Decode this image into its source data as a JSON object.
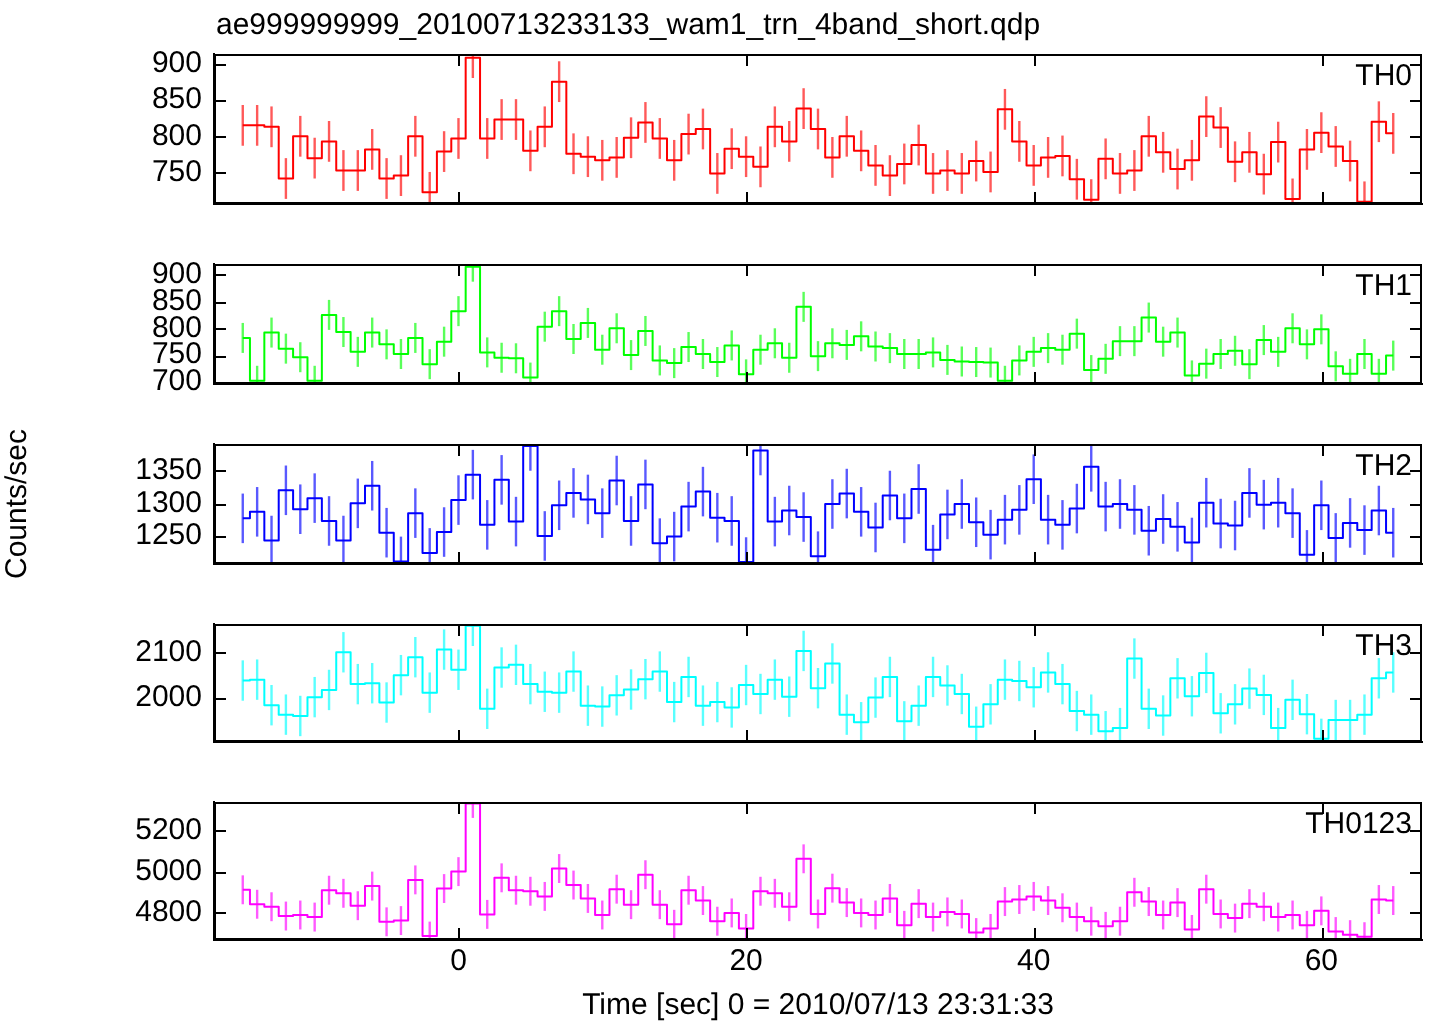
{
  "chart_data": [
    {
      "type": "step",
      "title": "ae999999999_20100713233133_wam1_trn_4band_short.qdp",
      "legend": "top right",
      "tick_labels": "y",
      "x": [
        -15,
        -14,
        -13,
        -12,
        -11,
        -10,
        -9,
        -8,
        -7,
        -6,
        -5,
        -4,
        -3,
        -2,
        -1,
        0,
        1,
        2,
        3,
        4,
        5,
        6,
        7,
        8,
        9,
        10,
        11,
        12,
        13,
        14,
        15,
        16,
        17,
        18,
        19,
        20,
        21,
        22,
        23,
        24,
        25,
        26,
        27,
        28,
        29,
        30,
        31,
        32,
        33,
        34,
        35,
        36,
        37,
        38,
        39,
        40,
        41,
        42,
        43,
        44,
        45,
        46,
        47,
        48,
        49,
        50,
        51,
        52,
        53,
        54,
        55,
        56,
        57,
        58,
        59,
        60,
        61,
        62,
        63,
        64,
        65
      ],
      "xlim": [
        -17,
        67
      ],
      "xticks": [
        0,
        20,
        40,
        60
      ],
      "ylim": [
        707,
        913
      ],
      "yticks": [
        750,
        800,
        850,
        900
      ],
      "series": [
        {
          "name": "TH0",
          "color": "#ff0000",
          "values": [
            815,
            815,
            813,
            742,
            800,
            770,
            793,
            753,
            753,
            782,
            742,
            746,
            800,
            723,
            779,
            797,
            908,
            797,
            823,
            823,
            780,
            813,
            875,
            776,
            772,
            767,
            771,
            798,
            819,
            797,
            767,
            803,
            810,
            749,
            783,
            772,
            758,
            813,
            793,
            838,
            810,
            771,
            800,
            780,
            760,
            746,
            762,
            788,
            749,
            753,
            749,
            766,
            751,
            837,
            793,
            760,
            771,
            773,
            741,
            713,
            769,
            749,
            753,
            800,
            778,
            755,
            767,
            827,
            812,
            765,
            778,
            748,
            792,
            714,
            782,
            805,
            786,
            766,
            710,
            820,
            804
          ],
          "errors": [
            28,
            28,
            28,
            28,
            28,
            28,
            28,
            28,
            28,
            28,
            28,
            28,
            28,
            28,
            28,
            28,
            28,
            28,
            28,
            28,
            28,
            28,
            28,
            28,
            28,
            28,
            28,
            28,
            28,
            28,
            28,
            28,
            28,
            28,
            28,
            28,
            28,
            28,
            28,
            28,
            28,
            28,
            28,
            28,
            28,
            28,
            28,
            28,
            28,
            28,
            28,
            28,
            28,
            28,
            28,
            28,
            28,
            28,
            28,
            28,
            28,
            28,
            28,
            28,
            28,
            28,
            28,
            28,
            28,
            28,
            28,
            28,
            28,
            28,
            28,
            28,
            28,
            28,
            28,
            28,
            28
          ]
        }
      ]
    },
    {
      "type": "step",
      "legend": "top right",
      "tick_labels": "y",
      "x": [
        -15,
        -14,
        -13,
        -12,
        -11,
        -10,
        -9,
        -8,
        -7,
        -6,
        -5,
        -4,
        -3,
        -2,
        -1,
        0,
        1,
        2,
        3,
        4,
        5,
        6,
        7,
        8,
        9,
        10,
        11,
        12,
        13,
        14,
        15,
        16,
        17,
        18,
        19,
        20,
        21,
        22,
        23,
        24,
        25,
        26,
        27,
        28,
        29,
        30,
        31,
        32,
        33,
        34,
        35,
        36,
        37,
        38,
        39,
        40,
        41,
        42,
        43,
        44,
        45,
        46,
        47,
        48,
        49,
        50,
        51,
        52,
        53,
        54,
        55,
        56,
        57,
        58,
        59,
        60,
        61,
        62,
        63,
        64,
        65
      ],
      "xlim": [
        -17,
        67
      ],
      "xticks": [
        0,
        20,
        40,
        60
      ],
      "ylim": [
        696,
        920
      ],
      "yticks": [
        700,
        750,
        800,
        850,
        900
      ],
      "series": [
        {
          "name": "TH1",
          "color": "#00ff00",
          "values": [
            782,
            702,
            792,
            762,
            746,
            702,
            825,
            793,
            756,
            792,
            770,
            752,
            782,
            733,
            775,
            832,
            915,
            755,
            745,
            744,
            708,
            803,
            832,
            780,
            810,
            760,
            800,
            750,
            795,
            740,
            735,
            765,
            752,
            737,
            768,
            714,
            760,
            772,
            745,
            840,
            748,
            772,
            769,
            785,
            766,
            763,
            752,
            752,
            755,
            741,
            738,
            737,
            736,
            702,
            740,
            756,
            763,
            760,
            790,
            722,
            743,
            776,
            776,
            820,
            775,
            792,
            712,
            734,
            752,
            758,
            733,
            778,
            756,
            800,
            770,
            798,
            729,
            715,
            752,
            715,
            749
          ],
          "errors": [
            28,
            28,
            28,
            28,
            28,
            28,
            28,
            28,
            28,
            28,
            28,
            28,
            28,
            28,
            28,
            28,
            28,
            28,
            28,
            28,
            28,
            28,
            28,
            28,
            28,
            28,
            28,
            28,
            28,
            28,
            28,
            28,
            28,
            28,
            28,
            28,
            28,
            28,
            28,
            28,
            28,
            28,
            28,
            28,
            28,
            28,
            28,
            28,
            28,
            28,
            28,
            28,
            28,
            28,
            28,
            28,
            28,
            28,
            28,
            28,
            28,
            28,
            28,
            28,
            28,
            28,
            28,
            28,
            28,
            28,
            28,
            28,
            28,
            28,
            28,
            28,
            28,
            28,
            28,
            28,
            28
          ]
        }
      ]
    },
    {
      "type": "step",
      "legend": "top right",
      "tick_labels": "y",
      "ylabel": "Counts/sec",
      "x": [
        -15,
        -14,
        -13,
        -12,
        -11,
        -10,
        -9,
        -8,
        -7,
        -6,
        -5,
        -4,
        -3,
        -2,
        -1,
        0,
        1,
        2,
        3,
        4,
        5,
        6,
        7,
        8,
        9,
        10,
        11,
        12,
        13,
        14,
        15,
        16,
        17,
        18,
        19,
        20,
        21,
        22,
        23,
        24,
        25,
        26,
        27,
        28,
        29,
        30,
        31,
        32,
        33,
        34,
        35,
        36,
        37,
        38,
        39,
        40,
        41,
        42,
        43,
        44,
        45,
        46,
        47,
        48,
        49,
        50,
        51,
        52,
        53,
        54,
        55,
        56,
        57,
        58,
        59,
        60,
        61,
        62,
        63,
        64,
        65
      ],
      "xlim": [
        -17,
        67
      ],
      "xticks": [
        0,
        20,
        40,
        60
      ],
      "ylim": [
        1207,
        1391
      ],
      "yticks": [
        1250,
        1300,
        1350
      ],
      "series": [
        {
          "name": "TH2",
          "color": "#0000ff",
          "values": [
            1277,
            1287,
            1243,
            1320,
            1291,
            1308,
            1273,
            1243,
            1300,
            1327,
            1255,
            1211,
            1285,
            1224,
            1256,
            1305,
            1344,
            1267,
            1336,
            1272,
            1388,
            1250,
            1297,
            1316,
            1306,
            1285,
            1335,
            1273,
            1329,
            1239,
            1249,
            1295,
            1318,
            1278,
            1273,
            1210,
            1381,
            1272,
            1289,
            1279,
            1219,
            1299,
            1315,
            1287,
            1263,
            1312,
            1277,
            1322,
            1229,
            1283,
            1299,
            1271,
            1252,
            1275,
            1290,
            1337,
            1275,
            1267,
            1292,
            1356,
            1295,
            1299,
            1290,
            1258,
            1276,
            1264,
            1240,
            1301,
            1269,
            1266,
            1316,
            1298,
            1301,
            1285,
            1221,
            1297,
            1247,
            1270,
            1259,
            1289,
            1255
          ],
          "errors": [
            38,
            38,
            38,
            38,
            38,
            38,
            38,
            38,
            38,
            38,
            38,
            38,
            38,
            38,
            38,
            38,
            38,
            38,
            38,
            38,
            38,
            38,
            38,
            38,
            38,
            38,
            38,
            38,
            38,
            38,
            38,
            38,
            38,
            38,
            38,
            38,
            38,
            38,
            38,
            38,
            38,
            38,
            38,
            38,
            38,
            38,
            38,
            38,
            38,
            38,
            38,
            38,
            38,
            38,
            38,
            38,
            38,
            38,
            38,
            38,
            38,
            38,
            38,
            38,
            38,
            38,
            38,
            38,
            38,
            38,
            38,
            38,
            38,
            38,
            38,
            38,
            38,
            38,
            38,
            38,
            38
          ]
        }
      ]
    },
    {
      "type": "step",
      "legend": "top right",
      "tick_labels": "y",
      "x": [
        -15,
        -14,
        -13,
        -12,
        -11,
        -10,
        -9,
        -8,
        -7,
        -6,
        -5,
        -4,
        -3,
        -2,
        -1,
        0,
        1,
        2,
        3,
        4,
        5,
        6,
        7,
        8,
        9,
        10,
        11,
        12,
        13,
        14,
        15,
        16,
        17,
        18,
        19,
        20,
        21,
        22,
        23,
        24,
        25,
        26,
        27,
        28,
        29,
        30,
        31,
        32,
        33,
        34,
        35,
        36,
        37,
        38,
        39,
        40,
        41,
        42,
        43,
        44,
        45,
        46,
        47,
        48,
        49,
        50,
        51,
        52,
        53,
        54,
        55,
        56,
        57,
        58,
        59,
        60,
        61,
        62,
        63,
        64,
        65
      ],
      "xlim": [
        -17,
        67
      ],
      "xticks": [
        0,
        20,
        40,
        60
      ],
      "ylim": [
        1901,
        2164
      ],
      "yticks": [
        2000,
        2100
      ],
      "series": [
        {
          "name": "TH3",
          "color": "#00ffff",
          "values": [
            2038,
            2040,
            1983,
            1962,
            1959,
            2001,
            2017,
            2101,
            2030,
            2032,
            1989,
            2050,
            2090,
            2011,
            2107,
            2062,
            2160,
            1975,
            2067,
            2073,
            2030,
            2013,
            2011,
            2058,
            1982,
            1980,
            2005,
            2018,
            2041,
            2058,
            1990,
            2046,
            1982,
            1990,
            1978,
            2028,
            2008,
            2040,
            2002,
            2104,
            2021,
            2076,
            1962,
            1945,
            2000,
            2046,
            1947,
            1982,
            2046,
            2027,
            2008,
            1935,
            1985,
            2040,
            2037,
            2023,
            2056,
            2030,
            1970,
            1962,
            1925,
            1932,
            2087,
            1975,
            1960,
            2043,
            2003,
            2055,
            1965,
            1985,
            2020,
            2006,
            1932,
            1995,
            1963,
            1908,
            1950,
            1950,
            1962,
            2043,
            2056
          ],
          "errors": [
            45,
            45,
            45,
            45,
            45,
            45,
            45,
            45,
            45,
            45,
            45,
            45,
            45,
            45,
            45,
            45,
            45,
            45,
            45,
            45,
            45,
            45,
            45,
            45,
            45,
            45,
            45,
            45,
            45,
            45,
            45,
            45,
            45,
            45,
            45,
            45,
            45,
            45,
            45,
            45,
            45,
            45,
            45,
            45,
            45,
            45,
            45,
            45,
            45,
            45,
            45,
            45,
            45,
            45,
            45,
            45,
            45,
            45,
            45,
            45,
            45,
            45,
            45,
            45,
            45,
            45,
            45,
            45,
            45,
            45,
            45,
            45,
            45,
            45,
            45,
            45,
            45,
            45,
            45,
            45,
            45
          ]
        }
      ]
    },
    {
      "type": "step",
      "legend": "top right",
      "xlabel": "Time [sec] 0 = 2010/07/13 23:31:33",
      "x": [
        -15,
        -14,
        -13,
        -12,
        -11,
        -10,
        -9,
        -8,
        -7,
        -6,
        -5,
        -4,
        -3,
        -2,
        -1,
        0,
        1,
        2,
        3,
        4,
        5,
        6,
        7,
        8,
        9,
        10,
        11,
        12,
        13,
        14,
        15,
        16,
        17,
        18,
        19,
        20,
        21,
        22,
        23,
        24,
        25,
        26,
        27,
        28,
        29,
        30,
        31,
        32,
        33,
        34,
        35,
        36,
        37,
        38,
        39,
        40,
        41,
        42,
        43,
        44,
        45,
        46,
        47,
        48,
        49,
        50,
        51,
        52,
        53,
        54,
        55,
        56,
        57,
        58,
        59,
        60,
        61,
        62,
        63,
        64,
        65
      ],
      "xlim": [
        -17,
        67
      ],
      "xticks": [
        0,
        20,
        40,
        60
      ],
      "ylim": [
        4669,
        5337
      ],
      "yticks": [
        4800,
        5000,
        5200
      ],
      "series": [
        {
          "name": "TH0123",
          "color": "#ff00ff",
          "values": [
            4912,
            4842,
            4830,
            4785,
            4790,
            4780,
            4910,
            4895,
            4835,
            4930,
            4757,
            4763,
            4960,
            4688,
            4918,
            5000,
            5330,
            4793,
            4970,
            4910,
            4905,
            4880,
            5015,
            4935,
            4870,
            4790,
            4915,
            4840,
            4985,
            4840,
            4745,
            4910,
            4860,
            4760,
            4800,
            4725,
            4905,
            4895,
            4830,
            5062,
            4795,
            4920,
            4850,
            4800,
            4790,
            4870,
            4740,
            4845,
            4780,
            4805,
            4795,
            4705,
            4725,
            4855,
            4865,
            4880,
            4860,
            4825,
            4780,
            4760,
            4735,
            4760,
            4900,
            4855,
            4790,
            4850,
            4720,
            4915,
            4795,
            4775,
            4845,
            4830,
            4780,
            4790,
            4740,
            4810,
            4710,
            4695,
            4685,
            4865,
            4860
          ],
          "errors": [
            70,
            70,
            70,
            70,
            70,
            70,
            70,
            70,
            70,
            70,
            70,
            70,
            70,
            70,
            70,
            70,
            70,
            70,
            70,
            70,
            70,
            70,
            70,
            70,
            70,
            70,
            70,
            70,
            70,
            70,
            70,
            70,
            70,
            70,
            70,
            70,
            70,
            70,
            70,
            70,
            70,
            70,
            70,
            70,
            70,
            70,
            70,
            70,
            70,
            70,
            70,
            70,
            70,
            70,
            70,
            70,
            70,
            70,
            70,
            70,
            70,
            70,
            70,
            70,
            70,
            70,
            70,
            70,
            70,
            70,
            70,
            70,
            70,
            70,
            70,
            70,
            70,
            70,
            70,
            70,
            70
          ]
        }
      ]
    }
  ]
}
